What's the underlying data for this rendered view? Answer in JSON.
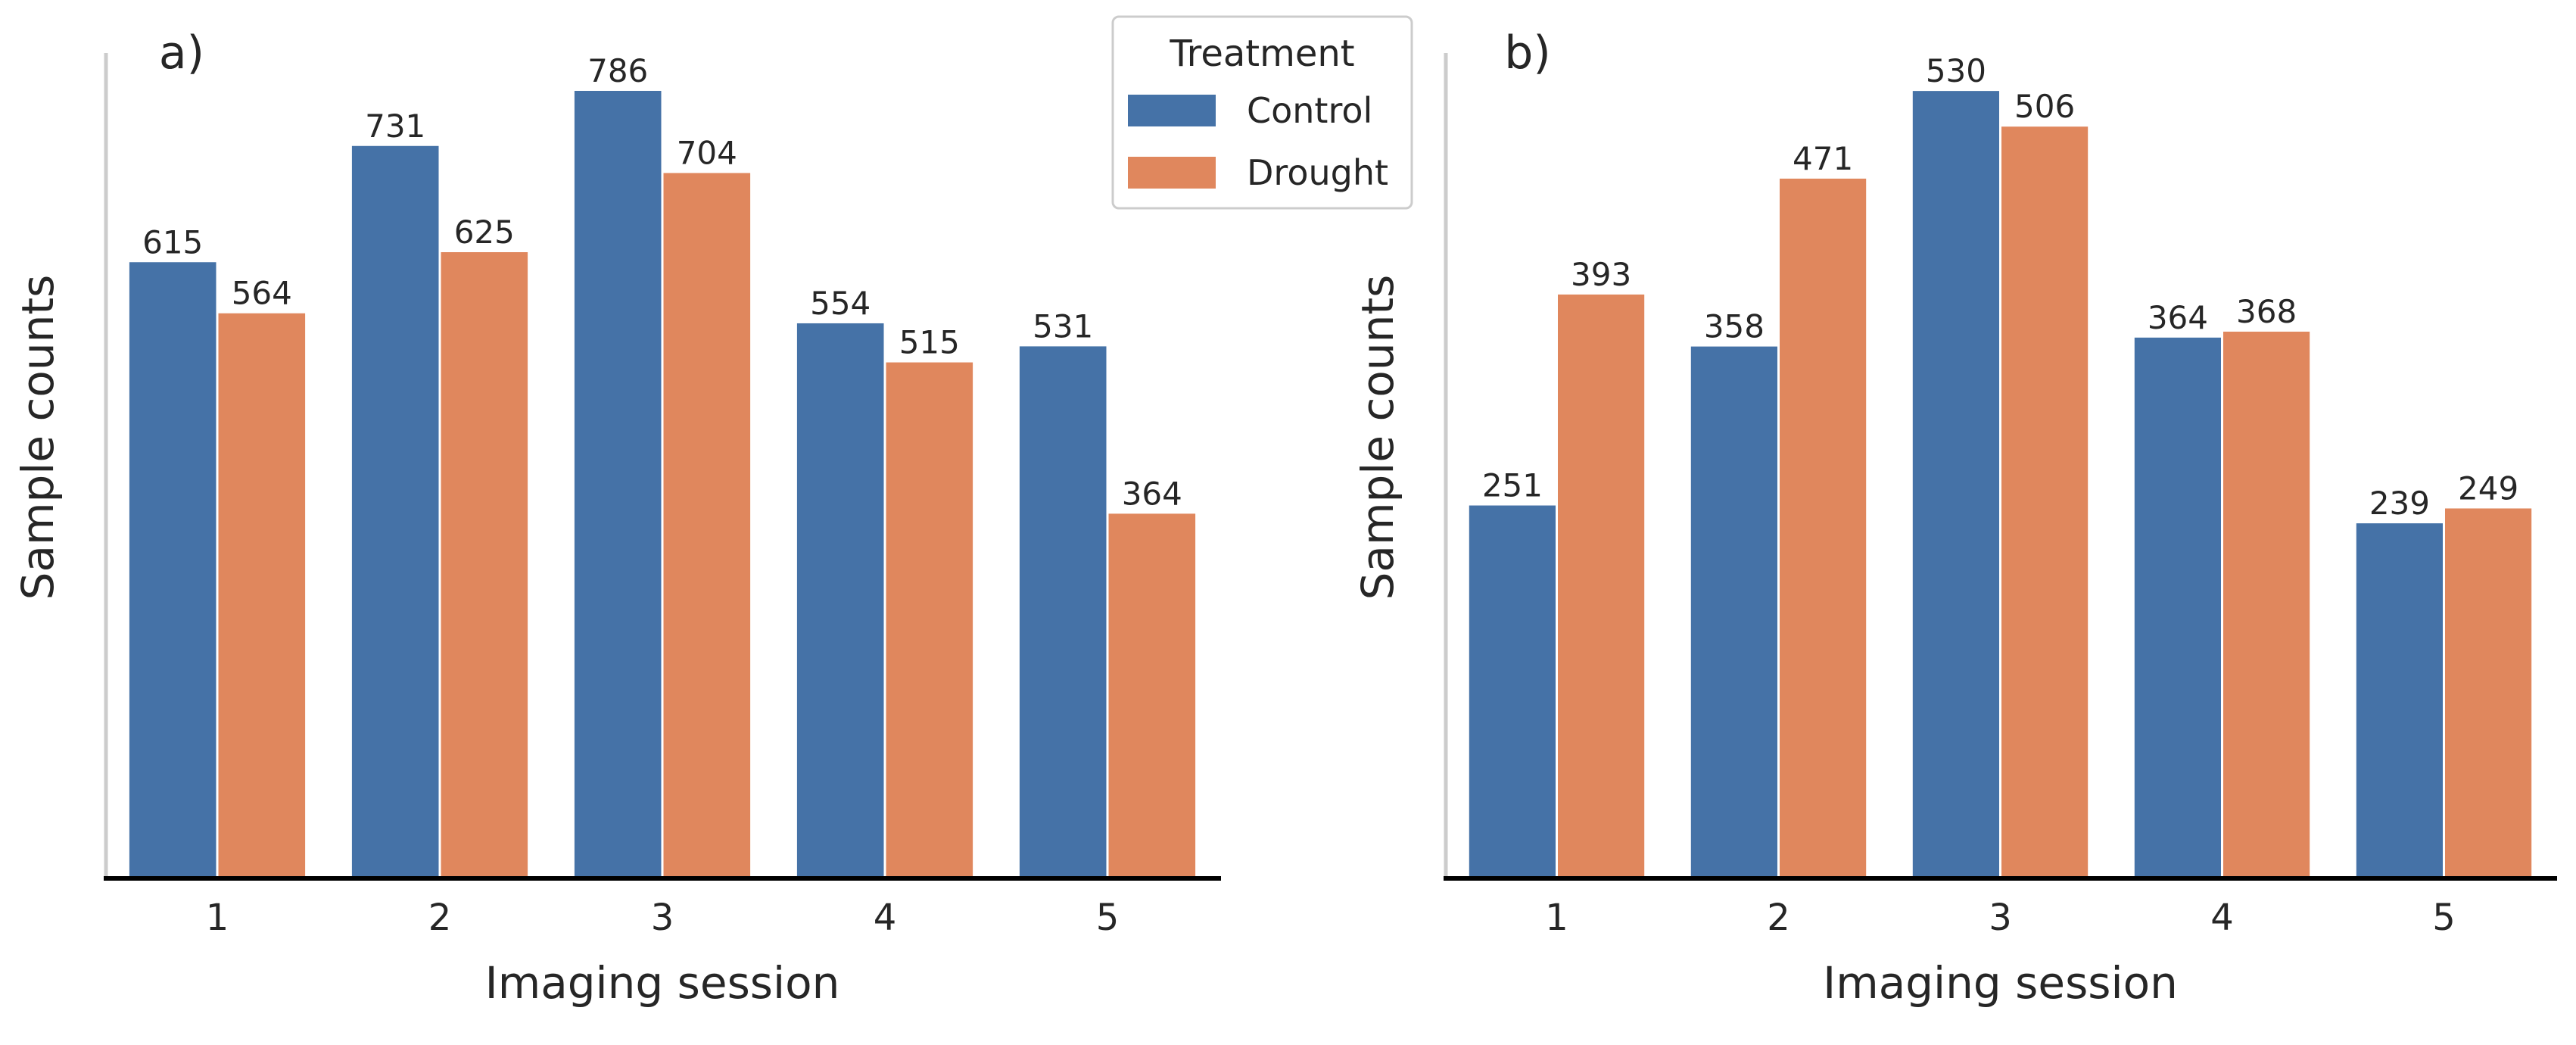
{
  "chart_data": [
    {
      "type": "bar",
      "panel_label": "a)",
      "xlabel": "Imaging session",
      "ylabel": "Sample counts",
      "categories": [
        "1",
        "2",
        "3",
        "4",
        "5"
      ],
      "ylim": [
        0,
        820
      ],
      "series": [
        {
          "name": "Control",
          "values": [
            615,
            731,
            786,
            554,
            531
          ]
        },
        {
          "name": "Drought",
          "values": [
            564,
            625,
            704,
            515,
            364
          ]
        }
      ],
      "grid": false,
      "legend": {
        "title": "Treatment",
        "position": "top-right"
      }
    },
    {
      "type": "bar",
      "panel_label": "b)",
      "xlabel": "Imaging session",
      "ylabel": "Sample counts",
      "categories": [
        "1",
        "2",
        "3",
        "4",
        "5"
      ],
      "ylim": [
        0,
        553
      ],
      "series": [
        {
          "name": "Control",
          "values": [
            251,
            358,
            530,
            364,
            239
          ]
        },
        {
          "name": "Drought",
          "values": [
            393,
            471,
            506,
            368,
            249
          ]
        }
      ],
      "grid": false,
      "legend": null
    }
  ],
  "colors": {
    "Control": "#4572a7",
    "Drought": "#e0875d",
    "text": "#262626",
    "axis": "#000000",
    "spine": "#cccccc"
  }
}
